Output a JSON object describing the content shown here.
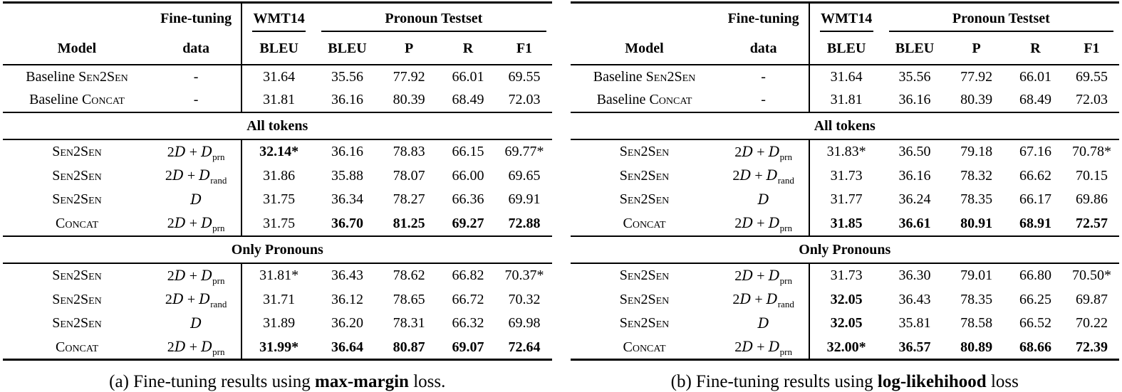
{
  "panels": [
    {
      "id": "a",
      "header": {
        "model_label": "Model",
        "finetuning_line1": "Fine-tuning",
        "finetuning_line2": "data",
        "wmt14": "WMT14",
        "wmt14_sub": "BLEU",
        "pronoun_testset": "Pronoun Testset",
        "pronoun_cols": [
          "BLEU",
          "P",
          "R",
          "F1"
        ]
      },
      "baseline_rows": [
        {
          "model_prefix": "Baseline ",
          "model_name": "Sen2Sen",
          "data": "-",
          "values": [
            "31.64",
            "35.56",
            "77.92",
            "66.01",
            "69.55"
          ],
          "bold": [
            false,
            false,
            false,
            false,
            false
          ]
        },
        {
          "model_prefix": "Baseline ",
          "model_name": "Concat",
          "data": "-",
          "values": [
            "31.81",
            "36.16",
            "80.39",
            "68.49",
            "72.03"
          ],
          "bold": [
            false,
            false,
            false,
            false,
            false
          ]
        }
      ],
      "sections": [
        {
          "title": "All tokens",
          "rows": [
            {
              "model_prefix": "",
              "model_name": "Sen2Sen",
              "data": "2D + D_prn",
              "values": [
                "32.14*",
                "36.16",
                "78.83",
                "66.15",
                "69.77*"
              ],
              "bold": [
                true,
                false,
                false,
                false,
                false
              ]
            },
            {
              "model_prefix": "",
              "model_name": "Sen2Sen",
              "data": "2D + D_rand",
              "values": [
                "31.86",
                "35.88",
                "78.07",
                "66.00",
                "69.65"
              ],
              "bold": [
                false,
                false,
                false,
                false,
                false
              ]
            },
            {
              "model_prefix": "",
              "model_name": "Sen2Sen",
              "data": "D",
              "values": [
                "31.75",
                "36.34",
                "78.27",
                "66.36",
                "69.91"
              ],
              "bold": [
                false,
                false,
                false,
                false,
                false
              ]
            },
            {
              "model_prefix": "",
              "model_name": "Concat",
              "data": "2D + D_prn",
              "values": [
                "31.75",
                "36.70",
                "81.25",
                "69.27",
                "72.88"
              ],
              "bold": [
                false,
                true,
                true,
                true,
                true
              ]
            }
          ]
        },
        {
          "title": "Only Pronouns",
          "rows": [
            {
              "model_prefix": "",
              "model_name": "Sen2Sen",
              "data": "2D + D_prn",
              "values": [
                "31.81*",
                "36.43",
                "78.62",
                "66.82",
                "70.37*"
              ],
              "bold": [
                false,
                false,
                false,
                false,
                false
              ]
            },
            {
              "model_prefix": "",
              "model_name": "Sen2Sen",
              "data": "2D + D_rand",
              "values": [
                "31.71",
                "36.12",
                "78.65",
                "66.72",
                "70.32"
              ],
              "bold": [
                false,
                false,
                false,
                false,
                false
              ]
            },
            {
              "model_prefix": "",
              "model_name": "Sen2Sen",
              "data": "D",
              "values": [
                "31.89",
                "36.20",
                "78.31",
                "66.32",
                "69.98"
              ],
              "bold": [
                false,
                false,
                false,
                false,
                false
              ]
            },
            {
              "model_prefix": "",
              "model_name": "Concat",
              "data": "2D + D_prn",
              "values": [
                "31.99*",
                "36.64",
                "80.87",
                "69.07",
                "72.64"
              ],
              "bold": [
                true,
                true,
                true,
                true,
                true
              ]
            }
          ]
        }
      ],
      "caption": {
        "prefix": "(a) Fine-tuning results using ",
        "emphasis": "max-margin",
        "suffix": " loss."
      }
    },
    {
      "id": "b",
      "header": {
        "model_label": "Model",
        "finetuning_line1": "Fine-tuning",
        "finetuning_line2": "data",
        "wmt14": "WMT14",
        "wmt14_sub": "BLEU",
        "pronoun_testset": "Pronoun Testset",
        "pronoun_cols": [
          "BLEU",
          "P",
          "R",
          "F1"
        ]
      },
      "baseline_rows": [
        {
          "model_prefix": "Baseline ",
          "model_name": "Sen2Sen",
          "data": "-",
          "values": [
            "31.64",
            "35.56",
            "77.92",
            "66.01",
            "69.55"
          ],
          "bold": [
            false,
            false,
            false,
            false,
            false
          ]
        },
        {
          "model_prefix": "Baseline ",
          "model_name": "Concat",
          "data": "-",
          "values": [
            "31.81",
            "36.16",
            "80.39",
            "68.49",
            "72.03"
          ],
          "bold": [
            false,
            false,
            false,
            false,
            false
          ]
        }
      ],
      "sections": [
        {
          "title": "All tokens",
          "rows": [
            {
              "model_prefix": "",
              "model_name": "Sen2Sen",
              "data": "2D + D_prn",
              "values": [
                "31.83*",
                "36.50",
                "79.18",
                "67.16",
                "70.78*"
              ],
              "bold": [
                false,
                false,
                false,
                false,
                false
              ]
            },
            {
              "model_prefix": "",
              "model_name": "Sen2Sen",
              "data": "2D + D_rand",
              "values": [
                "31.73",
                "36.16",
                "78.32",
                "66.62",
                "70.15"
              ],
              "bold": [
                false,
                false,
                false,
                false,
                false
              ]
            },
            {
              "model_prefix": "",
              "model_name": "Sen2Sen",
              "data": "D",
              "values": [
                "31.77",
                "36.24",
                "78.35",
                "66.17",
                "69.86"
              ],
              "bold": [
                false,
                false,
                false,
                false,
                false
              ]
            },
            {
              "model_prefix": "",
              "model_name": "Concat",
              "data": "2D + D_prn",
              "values": [
                "31.85",
                "36.61",
                "80.91",
                "68.91",
                "72.57"
              ],
              "bold": [
                true,
                true,
                true,
                true,
                true
              ]
            }
          ]
        },
        {
          "title": "Only Pronouns",
          "rows": [
            {
              "model_prefix": "",
              "model_name": "Sen2Sen",
              "data": "2D + D_prn",
              "values": [
                "31.73",
                "36.30",
                "79.01",
                "66.80",
                "70.50*"
              ],
              "bold": [
                false,
                false,
                false,
                false,
                false
              ]
            },
            {
              "model_prefix": "",
              "model_name": "Sen2Sen",
              "data": "2D + D_rand",
              "values": [
                "32.05",
                "36.43",
                "78.35",
                "66.25",
                "69.87"
              ],
              "bold": [
                true,
                false,
                false,
                false,
                false
              ]
            },
            {
              "model_prefix": "",
              "model_name": "Sen2Sen",
              "data": "D",
              "values": [
                "32.05",
                "35.81",
                "78.58",
                "66.52",
                "70.22"
              ],
              "bold": [
                true,
                false,
                false,
                false,
                false
              ]
            },
            {
              "model_prefix": "",
              "model_name": "Concat",
              "data": "2D + D_prn",
              "values": [
                "32.00*",
                "36.57",
                "80.89",
                "68.66",
                "72.39"
              ],
              "bold": [
                true,
                true,
                true,
                true,
                true
              ]
            }
          ]
        }
      ],
      "caption": {
        "prefix": "(b) Fine-tuning results using ",
        "emphasis": "log-likehihood",
        "suffix": " loss"
      }
    }
  ]
}
